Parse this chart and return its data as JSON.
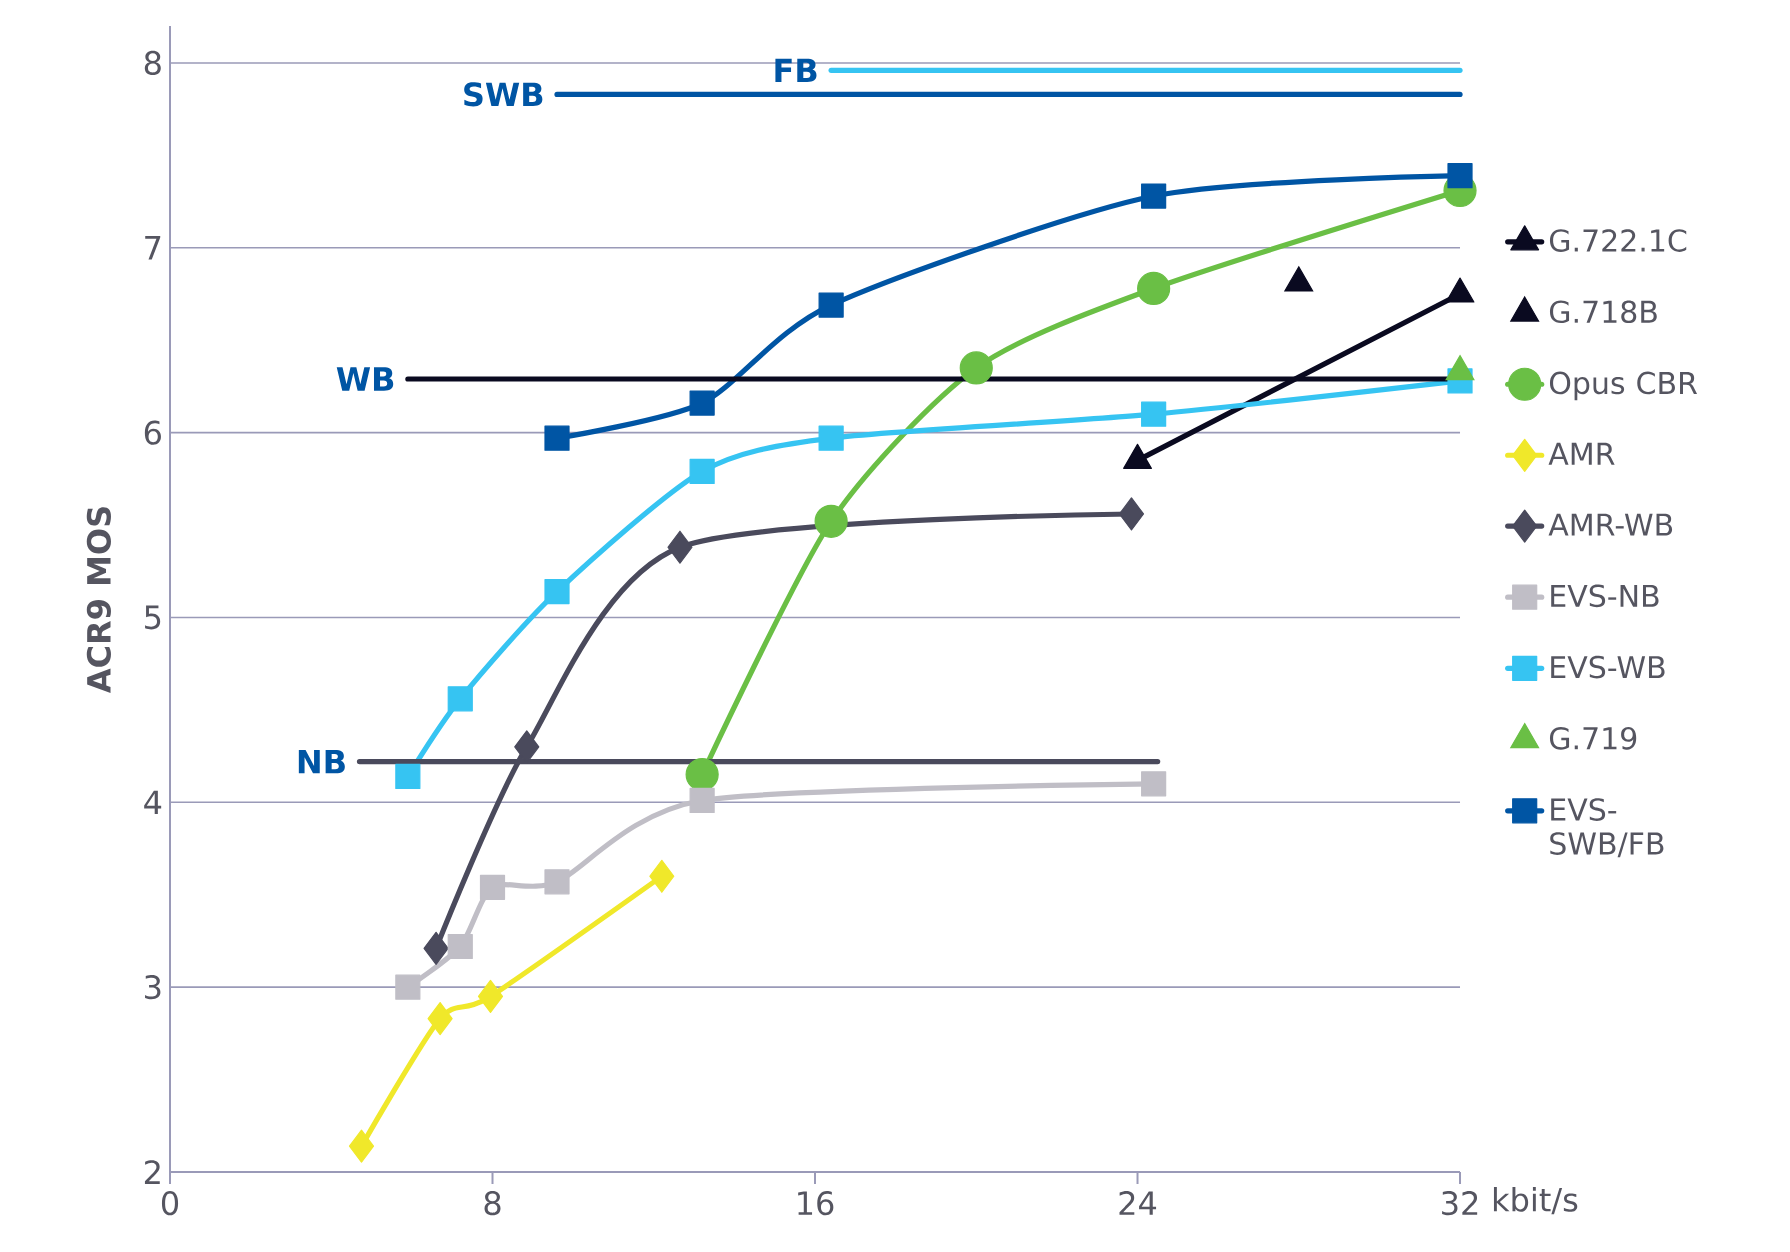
{
  "chart_data": {
    "type": "line",
    "xlabel": "kbit/s",
    "ylabel": "ACR9 MOS",
    "xlim": [
      0,
      32
    ],
    "ylim": [
      2,
      8.2
    ],
    "xticks": [
      0,
      8,
      16,
      24,
      32
    ],
    "yticks": [
      2,
      3,
      4,
      5,
      6,
      7,
      8
    ],
    "grid": "y",
    "legend": "right",
    "line_style": "solid",
    "series": [
      {
        "name": "G.722.1C",
        "marker": "triangle",
        "color": "#0a0a20",
        "x": [
          24,
          32
        ],
        "values": [
          5.85,
          6.75
        ]
      },
      {
        "name": "G.718B",
        "type": "scatter",
        "marker": "triangle",
        "color": "#0a0a20",
        "x": [
          28
        ],
        "values": [
          6.81
        ]
      },
      {
        "name": "Opus CBR",
        "marker": "circle",
        "color": "#6abf45",
        "x": [
          13.2,
          16.4,
          20,
          24.4,
          32
        ],
        "values": [
          4.15,
          5.52,
          6.35,
          6.78,
          7.31
        ]
      },
      {
        "name": "AMR",
        "marker": "diamond",
        "color": "#f0e82a",
        "x": [
          4.75,
          6.7,
          7.95,
          12.2
        ],
        "values": [
          2.14,
          2.83,
          2.95,
          3.6
        ]
      },
      {
        "name": "AMR-WB",
        "marker": "diamond",
        "color": "#4a4a5c",
        "x": [
          6.6,
          8.85,
          12.65,
          23.85
        ],
        "values": [
          3.21,
          4.3,
          5.38,
          5.56
        ]
      },
      {
        "name": "EVS-NB",
        "marker": "square",
        "color": "#c0bec6",
        "x": [
          5.9,
          7.2,
          8,
          9.6,
          13.2,
          24.4
        ],
        "values": [
          3.0,
          3.22,
          3.54,
          3.57,
          4.01,
          4.1
        ]
      },
      {
        "name": "EVS-WB",
        "marker": "square",
        "color": "#36c4f2",
        "x": [
          5.9,
          7.2,
          9.6,
          13.2,
          16.4,
          24.4,
          32
        ],
        "values": [
          4.14,
          4.56,
          5.14,
          5.79,
          5.97,
          6.1,
          6.28
        ]
      },
      {
        "name": "G.719",
        "type": "scatter",
        "marker": "triangle",
        "color": "#6abf45",
        "x": [
          32
        ],
        "values": [
          6.33
        ]
      },
      {
        "name": "EVS-SWB/FB",
        "marker": "square",
        "color": "#0055a4",
        "x": [
          9.6,
          13.2,
          16.4,
          24.4,
          32
        ],
        "values": [
          5.97,
          6.16,
          6.69,
          7.28,
          7.39
        ]
      },
      {
        "name": "NB",
        "marker": "none",
        "color": "#4a4a5c",
        "x": [
          4.7,
          24.5
        ],
        "values": [
          4.22,
          4.22
        ]
      },
      {
        "name": "WB",
        "marker": "none",
        "color": "#0a0a20",
        "x": [
          5.9,
          32
        ],
        "values": [
          6.29,
          6.29
        ]
      },
      {
        "name": "SWB",
        "marker": "none",
        "color": "#0055a4",
        "x": [
          9.6,
          32
        ],
        "values": [
          7.83,
          7.83
        ]
      },
      {
        "name": "FB",
        "marker": "none",
        "color": "#36c4f2",
        "x": [
          16.4,
          32
        ],
        "values": [
          7.96,
          7.96
        ]
      }
    ]
  }
}
